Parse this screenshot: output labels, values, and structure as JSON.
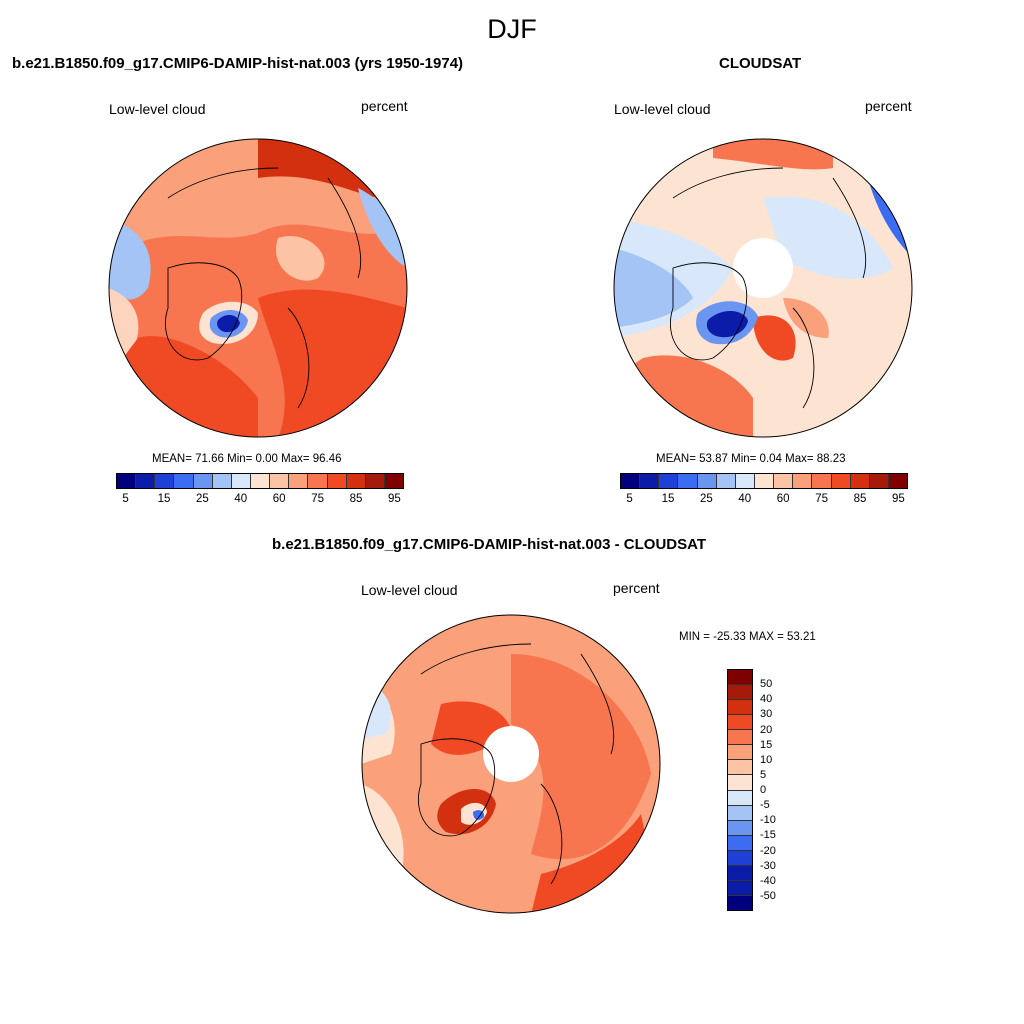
{
  "figure": {
    "season": "DJF"
  },
  "panels": [
    {
      "title": "b.e21.B1850.f09_g17.CMIP6-DAMIP-hist-nat.003 (yrs 1950-1974)",
      "left_label": "Low-level cloud",
      "right_label": "percent",
      "stats": "MEAN=  71.66  Min=   0.00  Max=  96.46"
    },
    {
      "title": "CLOUDSAT",
      "left_label": "Low-level cloud",
      "right_label": "percent",
      "stats": "MEAN=  53.87  Min=   0.04  Max=  88.23"
    },
    {
      "title": "b.e21.B1850.f09_g17.CMIP6-DAMIP-hist-nat.003 - CLOUDSAT",
      "left_label": "Low-level cloud",
      "right_label": "percent",
      "stats": "MIN = -25.33 MAX =  53.21"
    }
  ],
  "colorbar_abs": {
    "labels": [
      "5",
      "15",
      "25",
      "40",
      "60",
      "75",
      "85",
      "95"
    ],
    "colors": [
      "#00007f",
      "#0b1ca8",
      "#1f40d6",
      "#3b6cf2",
      "#6a96f2",
      "#a3c4f5",
      "#d8e8fa",
      "#fde4d2",
      "#fcc4a4",
      "#faa07a",
      "#f7764f",
      "#f04a25",
      "#d3300f",
      "#a51a08",
      "#7f0000"
    ]
  },
  "colorbar_diff": {
    "labels": [
      "50",
      "40",
      "30",
      "20",
      "15",
      "10",
      "5",
      "0",
      "-5",
      "-10",
      "-15",
      "-20",
      "-30",
      "-40",
      "-50"
    ],
    "colors": [
      "#7f0000",
      "#a51a08",
      "#d3300f",
      "#f04a25",
      "#f7764f",
      "#faa07a",
      "#fcc4a4",
      "#fde4d2",
      "#d8e8fa",
      "#a3c4f5",
      "#6a96f2",
      "#3b6cf2",
      "#1f40d6",
      "#0b1ca8",
      "#0b1ca8",
      "#00007f"
    ]
  }
}
